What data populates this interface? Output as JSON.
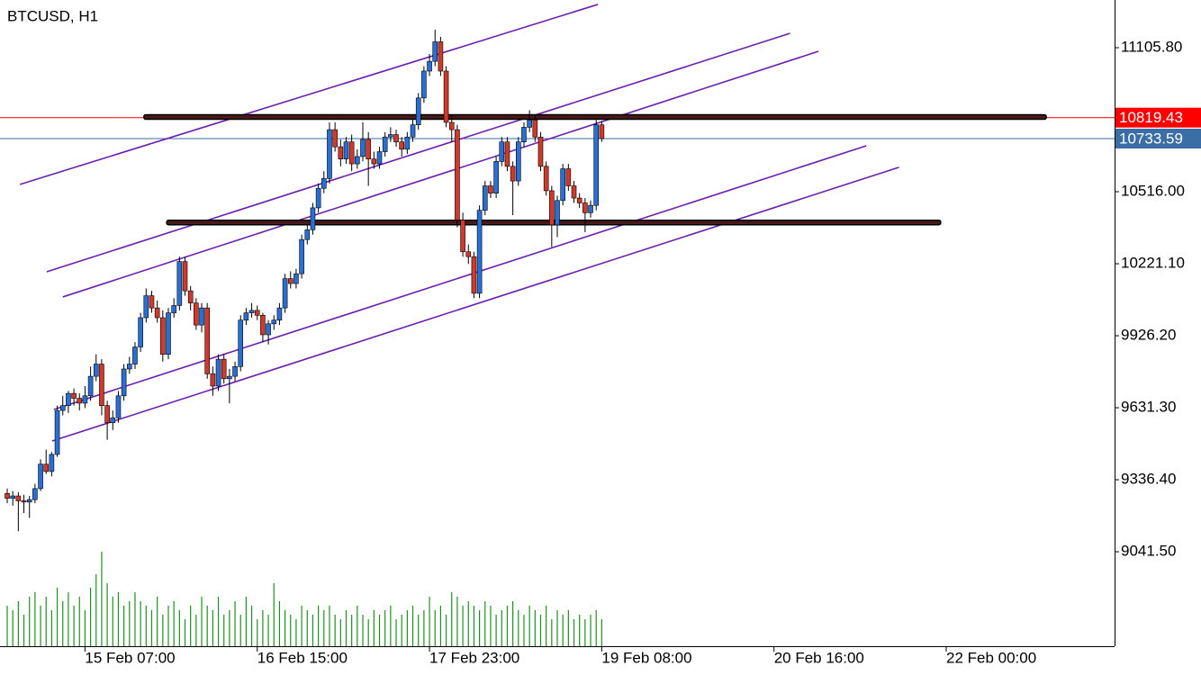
{
  "chart_data": {
    "type": "candlestick",
    "title": "BTCUSD, H1",
    "ohlc": [
      [
        9280,
        9300,
        9240,
        9260
      ],
      [
        9260,
        9290,
        9230,
        9270
      ],
      [
        9270,
        9285,
        9126,
        9250
      ],
      [
        9250,
        9275,
        9200,
        9245
      ],
      [
        9245,
        9270,
        9180,
        9255
      ],
      [
        9255,
        9320,
        9240,
        9300
      ],
      [
        9300,
        9420,
        9290,
        9400
      ],
      [
        9400,
        9460,
        9360,
        9370
      ],
      [
        9370,
        9450,
        9350,
        9440
      ],
      [
        9440,
        9640,
        9430,
        9620
      ],
      [
        9620,
        9680,
        9600,
        9640
      ],
      [
        9640,
        9700,
        9610,
        9690
      ],
      [
        9690,
        9710,
        9640,
        9670
      ],
      [
        9670,
        9690,
        9620,
        9650
      ],
      [
        9650,
        9720,
        9630,
        9680
      ],
      [
        9680,
        9800,
        9660,
        9760
      ],
      [
        9760,
        9850,
        9740,
        9810
      ],
      [
        9810,
        9830,
        9600,
        9640
      ],
      [
        9640,
        9660,
        9500,
        9570
      ],
      [
        9570,
        9620,
        9540,
        9590
      ],
      [
        9590,
        9700,
        9570,
        9680
      ],
      [
        9680,
        9810,
        9660,
        9790
      ],
      [
        9790,
        9840,
        9770,
        9810
      ],
      [
        9810,
        9900,
        9790,
        9880
      ],
      [
        9880,
        10020,
        9860,
        10000
      ],
      [
        10000,
        10120,
        9980,
        10090
      ],
      [
        10090,
        10110,
        10020,
        10040
      ],
      [
        10040,
        10070,
        9980,
        10000
      ],
      [
        10000,
        10030,
        9820,
        9850
      ],
      [
        9850,
        10040,
        9830,
        10020
      ],
      [
        10020,
        10080,
        10000,
        10050
      ],
      [
        10050,
        10250,
        10030,
        10230
      ],
      [
        10230,
        10250,
        10090,
        10110
      ],
      [
        10110,
        10130,
        10030,
        10060
      ],
      [
        10060,
        10080,
        9950,
        9970
      ],
      [
        9970,
        10060,
        9940,
        10040
      ],
      [
        10040,
        10060,
        9750,
        9770
      ],
      [
        9770,
        9800,
        9680,
        9720
      ],
      [
        9720,
        9850,
        9700,
        9830
      ],
      [
        9830,
        9850,
        9730,
        9750
      ],
      [
        9750,
        9790,
        9650,
        9760
      ],
      [
        9760,
        9820,
        9740,
        9800
      ],
      [
        9800,
        10010,
        9780,
        9990
      ],
      [
        9990,
        10040,
        9970,
        10020
      ],
      [
        10020,
        10060,
        10000,
        10030
      ],
      [
        10030,
        10050,
        9990,
        10010
      ],
      [
        10010,
        10020,
        9900,
        9930
      ],
      [
        9930,
        9990,
        9890,
        9975
      ],
      [
        9975,
        10010,
        9950,
        9990
      ],
      [
        9990,
        10060,
        9970,
        10040
      ],
      [
        10040,
        10180,
        10020,
        10160
      ],
      [
        10160,
        10190,
        10120,
        10140
      ],
      [
        10140,
        10200,
        10120,
        10180
      ],
      [
        10180,
        10340,
        10160,
        10320
      ],
      [
        10320,
        10380,
        10300,
        10360
      ],
      [
        10360,
        10470,
        10340,
        10450
      ],
      [
        10450,
        10550,
        10430,
        10530
      ],
      [
        10530,
        10600,
        10510,
        10570
      ],
      [
        10570,
        10800,
        10550,
        10770
      ],
      [
        10770,
        10800,
        10680,
        10700
      ],
      [
        10700,
        10730,
        10620,
        10650
      ],
      [
        10650,
        10740,
        10630,
        10720
      ],
      [
        10720,
        10750,
        10600,
        10630
      ],
      [
        10630,
        10690,
        10610,
        10660
      ],
      [
        10660,
        10800,
        10640,
        10730
      ],
      [
        10730,
        10760,
        10540,
        10650
      ],
      [
        10650,
        10680,
        10610,
        10630
      ],
      [
        10630,
        10700,
        10610,
        10680
      ],
      [
        10680,
        10760,
        10660,
        10740
      ],
      [
        10740,
        10780,
        10720,
        10750
      ],
      [
        10750,
        10770,
        10700,
        10720
      ],
      [
        10720,
        10740,
        10660,
        10690
      ],
      [
        10690,
        10760,
        10670,
        10740
      ],
      [
        10740,
        10810,
        10720,
        10790
      ],
      [
        10790,
        10920,
        10770,
        10900
      ],
      [
        10900,
        11030,
        10880,
        11010
      ],
      [
        11010,
        11080,
        10990,
        11050
      ],
      [
        11050,
        11180,
        11030,
        11130
      ],
      [
        11130,
        11150,
        10990,
        11010
      ],
      [
        11010,
        11030,
        10780,
        10800
      ],
      [
        10800,
        10830,
        10720,
        10770
      ],
      [
        10770,
        10790,
        10370,
        10400
      ],
      [
        10400,
        10430,
        10250,
        10270
      ],
      [
        10270,
        10300,
        10220,
        10250
      ],
      [
        10250,
        10270,
        10080,
        10100
      ],
      [
        10100,
        10460,
        10080,
        10440
      ],
      [
        10440,
        10560,
        10420,
        10540
      ],
      [
        10540,
        10560,
        10490,
        10510
      ],
      [
        10510,
        10660,
        10490,
        10640
      ],
      [
        10640,
        10740,
        10620,
        10720
      ],
      [
        10720,
        10740,
        10600,
        10620
      ],
      [
        10620,
        10640,
        10420,
        10560
      ],
      [
        10560,
        10740,
        10540,
        10720
      ],
      [
        10720,
        10800,
        10700,
        10780
      ],
      [
        10780,
        10850,
        10760,
        10810
      ],
      [
        10810,
        10830,
        10720,
        10740
      ],
      [
        10740,
        10760,
        10600,
        10620
      ],
      [
        10620,
        10640,
        10500,
        10520
      ],
      [
        10520,
        10540,
        10290,
        10380
      ],
      [
        10380,
        10500,
        10330,
        10480
      ],
      [
        10480,
        10630,
        10460,
        10610
      ],
      [
        10610,
        10630,
        10520,
        10540
      ],
      [
        10540,
        10560,
        10470,
        10490
      ],
      [
        10490,
        10510,
        10450,
        10470
      ],
      [
        10470,
        10490,
        10350,
        10430
      ],
      [
        10430,
        10480,
        10410,
        10460
      ],
      [
        10460,
        10810,
        10440,
        10790
      ],
      [
        10790,
        10805,
        10720,
        10733.59
      ]
    ],
    "up_color": "#2a6fd6",
    "down_color": "#d0392b",
    "volume": [
      45,
      40,
      50,
      35,
      55,
      60,
      45,
      55,
      40,
      65,
      50,
      60,
      45,
      55,
      40,
      65,
      80,
      105,
      70,
      55,
      60,
      45,
      50,
      60,
      50,
      45,
      40,
      55,
      35,
      45,
      50,
      40,
      30,
      45,
      35,
      55,
      45,
      40,
      55,
      35,
      40,
      50,
      35,
      55,
      45,
      30,
      40,
      35,
      70,
      50,
      40,
      35,
      30,
      45,
      40,
      35,
      45,
      40,
      45,
      35,
      30,
      40,
      35,
      45,
      35,
      30,
      40,
      35,
      40,
      45,
      30,
      35,
      40,
      45,
      35,
      40,
      55,
      40,
      45,
      35,
      60,
      55,
      45,
      50,
      45,
      40,
      50,
      45,
      35,
      40,
      45,
      50,
      40,
      35,
      45,
      40,
      35,
      45,
      30,
      40,
      35,
      40,
      30,
      35,
      30,
      35,
      40,
      30
    ],
    "volume_color": "#1f8f1f",
    "xlim": [
      -1.3,
      199.3
    ],
    "xticks": [
      {
        "value": 14,
        "label": "15 Feb 07:00"
      },
      {
        "value": 45,
        "label": "16 Feb 15:00"
      },
      {
        "value": 76,
        "label": "17 Feb 23:00"
      },
      {
        "value": 107,
        "label": "19 Feb 08:00"
      },
      {
        "value": 138,
        "label": "20 Feb 16:00"
      },
      {
        "value": 169,
        "label": "22 Feb 00:00"
      }
    ],
    "ylim": [
      8654.6,
      11301.2
    ],
    "yticks": [
      {
        "value": 11105.8,
        "label": "11105.80"
      },
      {
        "value": 10516,
        "label": "10516.00"
      },
      {
        "value": 10221.1,
        "label": "10221.10"
      },
      {
        "value": 9926.2,
        "label": "9926.20"
      },
      {
        "value": 9631.3,
        "label": "9631.30"
      },
      {
        "value": 9336.4,
        "label": "9336.40"
      },
      {
        "value": 9041.5,
        "label": "9041.50"
      }
    ],
    "price_lines": [
      {
        "value": 10819.43,
        "color": "#ff0000"
      },
      {
        "value": 10733.59,
        "color": "#3a6ea5"
      }
    ],
    "levels": [
      {
        "value": 10822,
        "x": [
          24.6,
          187
        ]
      },
      {
        "value": 10390,
        "x": [
          28.7,
          168
        ]
      }
    ],
    "trendlines": [
      {
        "x": [
          2.3,
          106.3
        ],
        "y": [
          10546,
          11283
        ]
      },
      {
        "x": [
          7.1,
          140.9
        ],
        "y": [
          10188,
          11165
        ]
      },
      {
        "x": [
          10,
          146
        ],
        "y": [
          10085,
          11091
        ]
      },
      {
        "x": [
          8.4,
          154.6
        ],
        "y": [
          9624,
          10704
        ]
      },
      {
        "x": [
          8.1,
          160.5
        ],
        "y": [
          9495,
          10616
        ]
      }
    ],
    "trendline_color": "#6a1fb0"
  }
}
